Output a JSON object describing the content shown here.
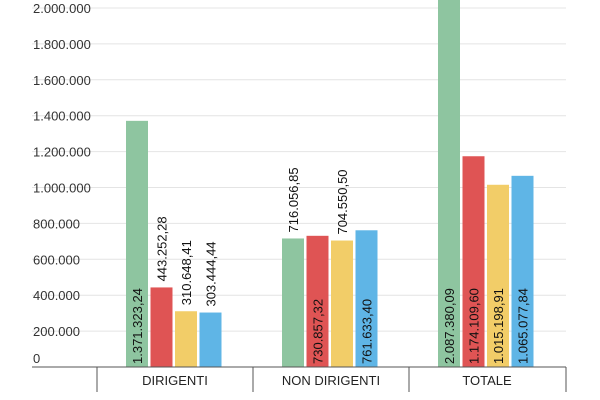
{
  "chart_data": {
    "type": "bar",
    "categories": [
      "DIRIGENTI",
      "NON DIRIGENTI",
      "TOTALE"
    ],
    "series": [
      {
        "values": [
          1371323.24,
          716056.85,
          2087380.09
        ],
        "labels": [
          "1.371.323,24",
          "716.056,85",
          "2.087.380,09"
        ]
      },
      {
        "values": [
          443252.28,
          730857.32,
          1174109.6
        ],
        "labels": [
          "443.252,28",
          "730.857,32",
          "1.174.109,60"
        ]
      },
      {
        "values": [
          310648.41,
          704550.5,
          1015198.91
        ],
        "labels": [
          "310.648,41",
          "704.550,50",
          "1.015.198,91"
        ]
      },
      {
        "values": [
          303444.44,
          761633.4,
          1065077.84
        ],
        "labels": [
          "303.444,44",
          "761.633,40",
          "1.065.077,84"
        ]
      }
    ],
    "yticks": [
      0,
      200000,
      400000,
      600000,
      800000,
      1000000,
      1200000,
      1400000,
      1600000,
      1800000,
      2000000
    ],
    "ytick_labels": [
      "0",
      "200.000",
      "400.000",
      "600.000",
      "800.000",
      "1.000.000",
      "1.200.000",
      "1.400.000",
      "1.600.000",
      "1.800.000",
      "2.000.000"
    ],
    "ylim": [
      0,
      2080000
    ],
    "colors": [
      "#8ec5a0",
      "#df5454",
      "#f2cd68",
      "#5fb5e6"
    ],
    "grid": true,
    "legend": "none"
  }
}
